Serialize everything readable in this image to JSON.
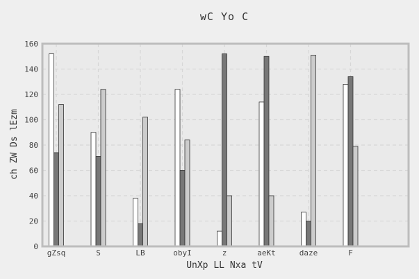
{
  "chart_data": {
    "type": "bar",
    "title": "wC Yo  C",
    "xlabel": "UnXp LL Nxa tV",
    "ylabel": "ch ZW Ds lEzm",
    "categories": [
      "gZsq",
      "S",
      "LB",
      "obyI",
      "z",
      "aeKt",
      "daze",
      "F"
    ],
    "series": [
      {
        "values": [
          152,
          90,
          38,
          124,
          12,
          114,
          27,
          128
        ],
        "color": "#ffffff"
      },
      {
        "values": [
          74,
          71,
          18,
          60,
          152,
          150,
          20,
          134
        ],
        "color": "#777777"
      },
      {
        "values": [
          112,
          124,
          102,
          84,
          40,
          40,
          151,
          79
        ],
        "color": "#cccccc"
      }
    ],
    "ylim": [
      0,
      160
    ],
    "yticks": [
      0,
      20,
      40,
      60,
      80,
      100,
      120,
      140,
      160
    ],
    "grid": true,
    "colors": {
      "background": "#efefef",
      "plot_background": "#eaeaea",
      "frame": "#bdbdbd",
      "bar_edge": "#333333"
    }
  }
}
